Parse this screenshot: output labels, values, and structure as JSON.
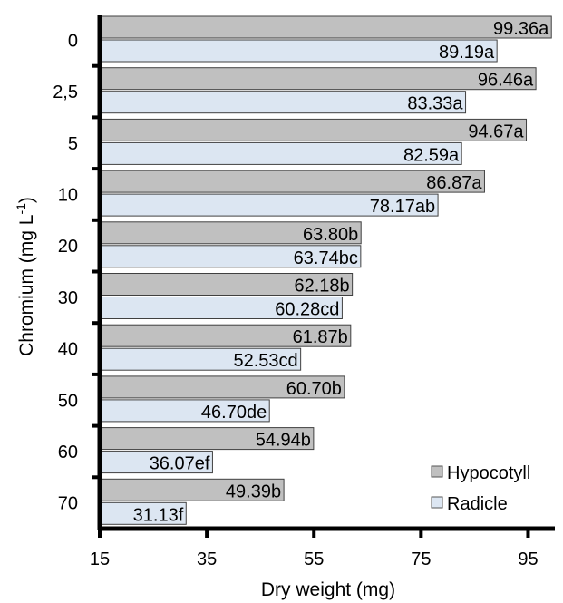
{
  "chart_data": {
    "type": "bar",
    "orientation": "horizontal",
    "categories": [
      "0",
      "2,5",
      "5",
      "10",
      "20",
      "30",
      "40",
      "50",
      "60",
      "70"
    ],
    "series": [
      {
        "name": "Hypocotyll",
        "color": "#c0c0c0",
        "values": [
          99.36,
          96.46,
          94.67,
          86.87,
          63.8,
          62.18,
          61.87,
          60.7,
          54.94,
          49.39
        ],
        "labels": [
          "99.36a",
          "96.46a",
          "94.67a",
          "86.87a",
          "63.80b",
          "62.18b",
          "61.87b",
          "60.70b",
          "54.94b",
          "49.39b"
        ]
      },
      {
        "name": "Radicle",
        "color": "#dce6f2",
        "values": [
          89.19,
          83.33,
          82.59,
          78.17,
          63.74,
          60.28,
          52.53,
          46.7,
          36.07,
          31.13
        ],
        "labels": [
          "89.19a",
          "83.33a",
          "82.59a",
          "78.17ab",
          "63.74bc",
          "60.28cd",
          "52.53cd",
          "46.70de",
          "36.07ef",
          "31.13f"
        ]
      }
    ],
    "xlabel": "Dry weight (mg)",
    "ylabel_main": "Chromium (mg L",
    "ylabel_sup": "-1",
    "ylabel_close": ")",
    "xlim": [
      15,
      100
    ],
    "xticks": [
      15,
      35,
      55,
      75,
      95
    ],
    "legend_position": "bottom-right",
    "grid": false
  }
}
